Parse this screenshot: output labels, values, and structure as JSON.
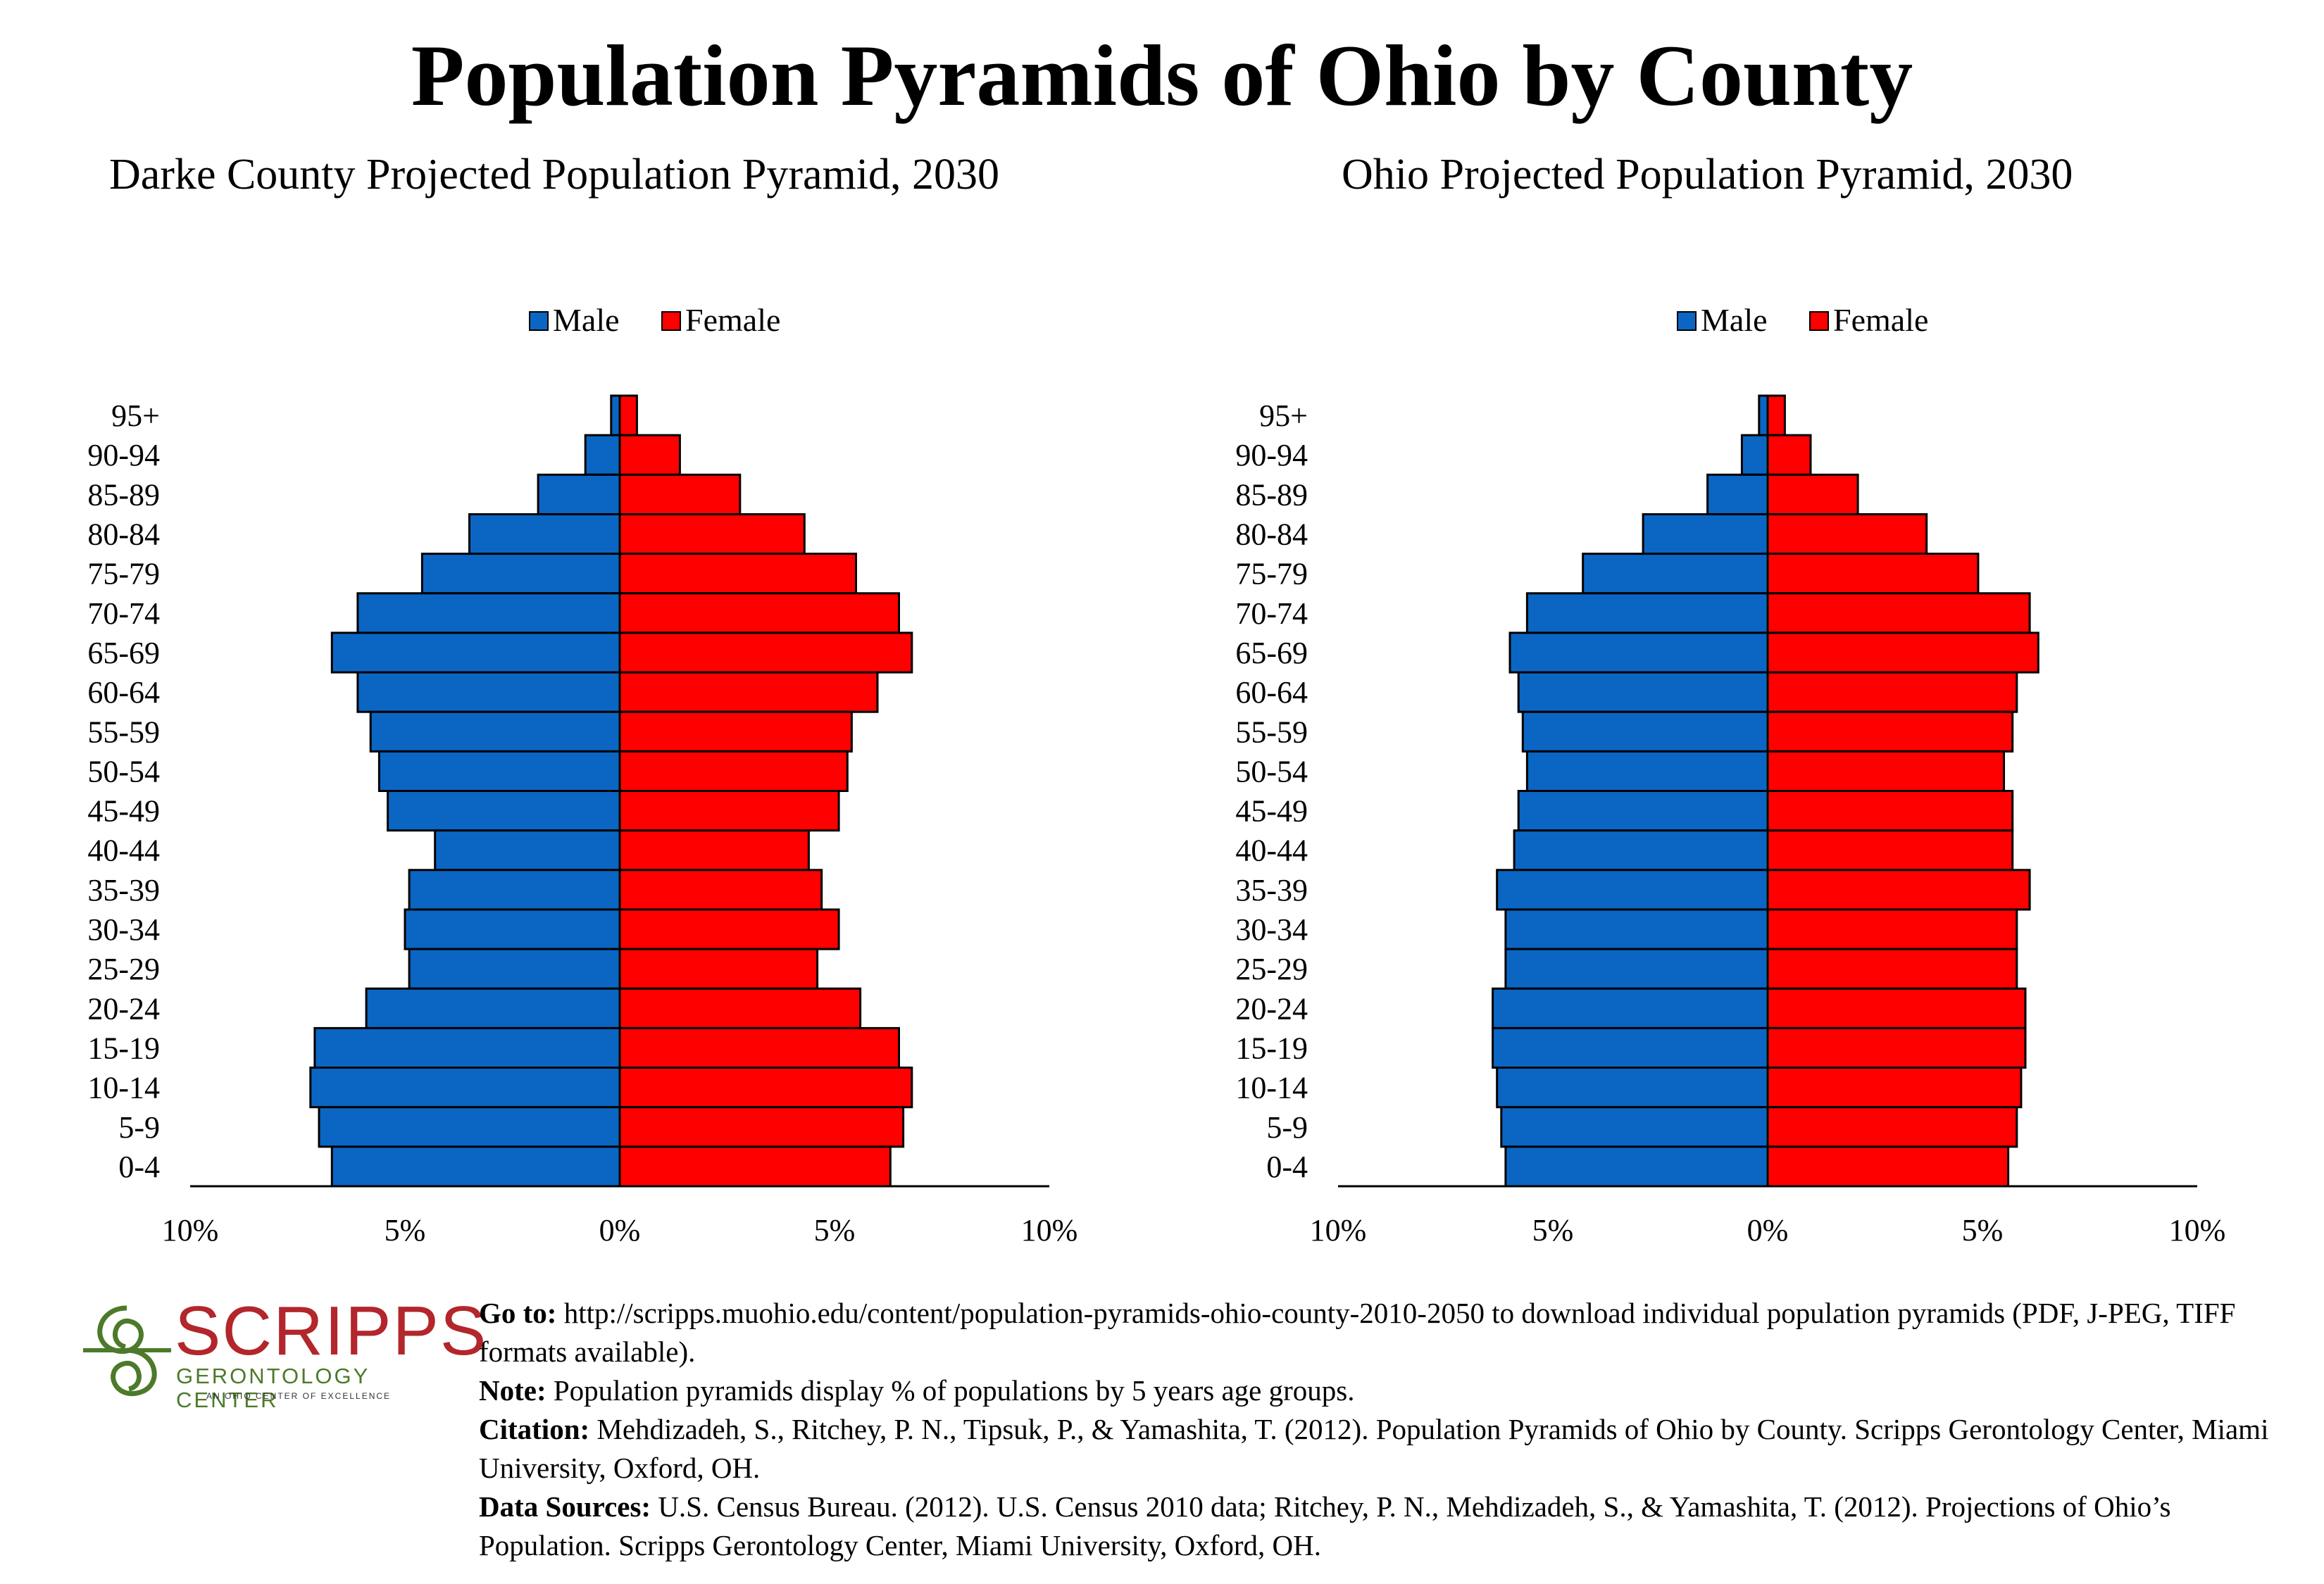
{
  "title": "Population Pyramids of Ohio by County",
  "colors": {
    "male": "#0b66c3",
    "female": "#ff0000",
    "outline": "#000000"
  },
  "chart_data": [
    {
      "type": "bar",
      "orientation": "horizontal-pyramid",
      "title": "Darke County Projected Population Pyramid, 2030",
      "categories": [
        "95+",
        "90-94",
        "85-89",
        "80-84",
        "75-79",
        "70-74",
        "65-69",
        "60-64",
        "55-59",
        "50-54",
        "45-49",
        "40-44",
        "35-39",
        "30-34",
        "25-29",
        "20-24",
        "15-19",
        "10-14",
        "5-9",
        "0-4"
      ],
      "series": [
        {
          "name": "Male",
          "values": [
            0.2,
            0.8,
            1.9,
            3.5,
            4.6,
            6.1,
            6.7,
            6.1,
            5.8,
            5.6,
            5.4,
            4.3,
            4.9,
            5.0,
            4.9,
            5.9,
            7.1,
            7.2,
            7.0,
            6.7
          ]
        },
        {
          "name": "Female",
          "values": [
            0.4,
            1.4,
            2.8,
            4.3,
            5.5,
            6.5,
            6.8,
            6.0,
            5.4,
            5.3,
            5.1,
            4.4,
            4.7,
            5.1,
            4.6,
            5.6,
            6.5,
            6.8,
            6.6,
            6.3
          ]
        }
      ],
      "xticks": [
        "10%",
        "5%",
        "0%",
        "5%",
        "10%"
      ],
      "xlim": [
        -10,
        10
      ],
      "legend": "top-center"
    },
    {
      "type": "bar",
      "orientation": "horizontal-pyramid",
      "title": "Ohio Projected Population Pyramid, 2030",
      "categories": [
        "95+",
        "90-94",
        "85-89",
        "80-84",
        "75-79",
        "70-74",
        "65-69",
        "60-64",
        "55-59",
        "50-54",
        "45-49",
        "40-44",
        "35-39",
        "30-34",
        "25-29",
        "20-24",
        "15-19",
        "10-14",
        "5-9",
        "0-4"
      ],
      "series": [
        {
          "name": "Male",
          "values": [
            0.2,
            0.6,
            1.4,
            2.9,
            4.3,
            5.6,
            6.0,
            5.8,
            5.7,
            5.6,
            5.8,
            5.9,
            6.3,
            6.1,
            6.1,
            6.4,
            6.4,
            6.3,
            6.2,
            6.1
          ]
        },
        {
          "name": "Female",
          "values": [
            0.4,
            1.0,
            2.1,
            3.7,
            4.9,
            6.1,
            6.3,
            5.8,
            5.7,
            5.5,
            5.7,
            5.7,
            6.1,
            5.8,
            5.8,
            6.0,
            6.0,
            5.9,
            5.8,
            5.6
          ]
        }
      ],
      "xticks": [
        "10%",
        "5%",
        "0%",
        "5%",
        "10%"
      ],
      "xlim": [
        -10,
        10
      ],
      "legend": "top-center"
    }
  ],
  "logo": {
    "name": "SCRIPPS",
    "subtitle": "GERONTOLOGY CENTER",
    "tagline": "AN OHIO CENTER OF EXCELLENCE"
  },
  "footer": {
    "goto_label": "Go to:",
    "goto_text": " http://scripps.muohio.edu/content/population-pyramids-ohio-county-2010-2050 to download individual population pyramids (PDF, J-PEG, TIFF formats available).",
    "note_label": "Note:",
    "note_text": " Population pyramids display % of populations by 5 years age groups.",
    "citation_label": "Citation:",
    "citation_text": " Mehdizadeh, S., Ritchey, P. N., Tipsuk, P., & Yamashita, T. (2012). Population Pyramids of Ohio by County. Scripps Gerontology Center, Miami University, Oxford, OH.",
    "sources_label": "Data Sources:",
    "sources_text": " U.S. Census Bureau. (2012). U.S. Census 2010 data; Ritchey, P. N., Mehdizadeh, S., & Yamashita, T. (2012). Projections of Ohio’s Population. Scripps Gerontology Center, Miami University, Oxford, OH."
  }
}
